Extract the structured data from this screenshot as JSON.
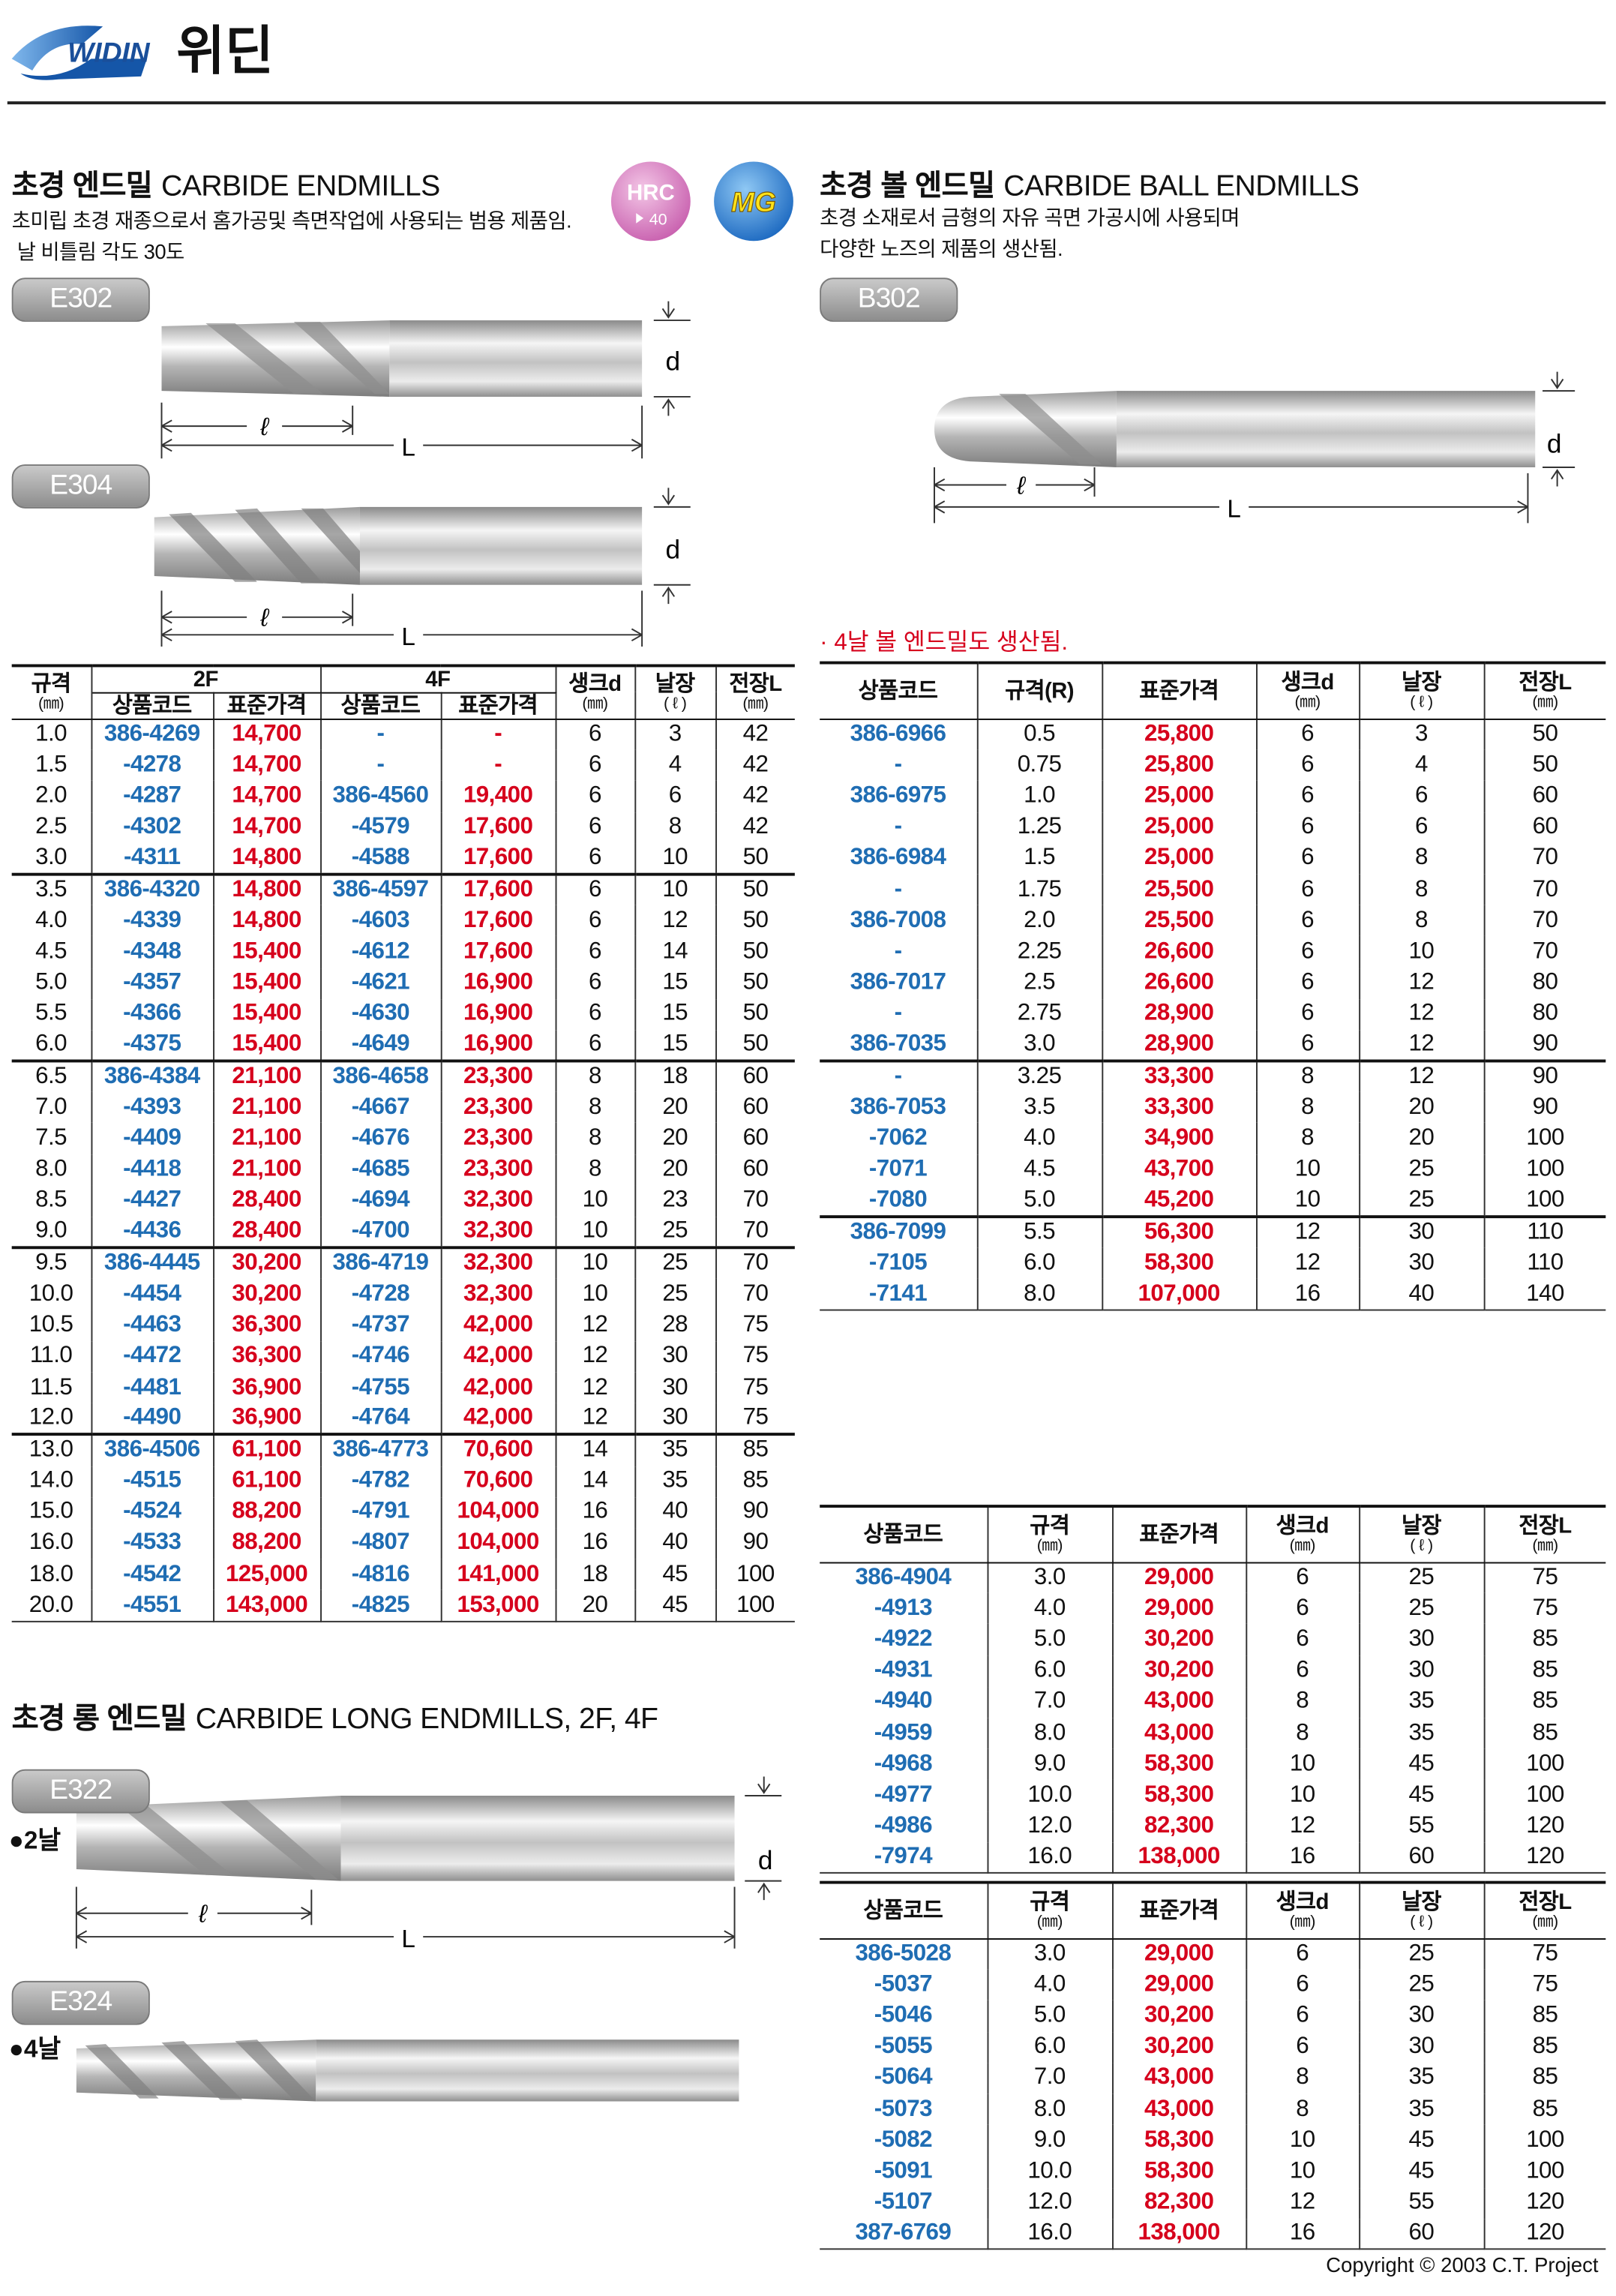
{
  "header": {
    "brand": "WIDIN",
    "title": "위딘"
  },
  "dims": {
    "d": "d",
    "l": "ℓ",
    "L": "L"
  },
  "endmills": {
    "title_ko": "초경 엔드밀",
    "title_en": "CARBIDE ENDMILLS",
    "description": [
      "초미립 초경 재종으로서 홈가공및 측면작업에 사용되는 범용 제품임.",
      " 날 비틀림 각도 30도"
    ],
    "badges": {
      "hrc": "HRC",
      "hrc_value": "40",
      "mg": "MG"
    },
    "models": [
      "E302",
      "E304"
    ],
    "table": {
      "header": {
        "size": "규격",
        "size_unit": "(㎜)",
        "group_2f": "2F",
        "group_4f": "4F",
        "code": "상품코드",
        "price": "표준가격",
        "shank": "생크d",
        "shank_unit": "(㎜)",
        "flute": "날장",
        "flute_unit": "( ℓ )",
        "length": "전장L",
        "length_unit": "(㎜)"
      },
      "rows": [
        [
          "1.0",
          "386-4269",
          "14,700",
          "-",
          "-",
          "6",
          "3",
          "42"
        ],
        [
          "1.5",
          "-4278",
          "14,700",
          "-",
          "-",
          "6",
          "4",
          "42"
        ],
        [
          "2.0",
          "-4287",
          "14,700",
          "386-4560",
          "19,400",
          "6",
          "6",
          "42"
        ],
        [
          "2.5",
          "-4302",
          "14,700",
          "-4579",
          "17,600",
          "6",
          "8",
          "42"
        ],
        [
          "3.0",
          "-4311",
          "14,800",
          "-4588",
          "17,600",
          "6",
          "10",
          "50"
        ],
        [
          "3.5",
          "386-4320",
          "14,800",
          "386-4597",
          "17,600",
          "6",
          "10",
          "50"
        ],
        [
          "4.0",
          "-4339",
          "14,800",
          "-4603",
          "17,600",
          "6",
          "12",
          "50"
        ],
        [
          "4.5",
          "-4348",
          "15,400",
          "-4612",
          "17,600",
          "6",
          "14",
          "50"
        ],
        [
          "5.0",
          "-4357",
          "15,400",
          "-4621",
          "16,900",
          "6",
          "15",
          "50"
        ],
        [
          "5.5",
          "-4366",
          "15,400",
          "-4630",
          "16,900",
          "6",
          "15",
          "50"
        ],
        [
          "6.0",
          "-4375",
          "15,400",
          "-4649",
          "16,900",
          "6",
          "15",
          "50"
        ],
        [
          "6.5",
          "386-4384",
          "21,100",
          "386-4658",
          "23,300",
          "8",
          "18",
          "60"
        ],
        [
          "7.0",
          "-4393",
          "21,100",
          "-4667",
          "23,300",
          "8",
          "20",
          "60"
        ],
        [
          "7.5",
          "-4409",
          "21,100",
          "-4676",
          "23,300",
          "8",
          "20",
          "60"
        ],
        [
          "8.0",
          "-4418",
          "21,100",
          "-4685",
          "23,300",
          "8",
          "20",
          "60"
        ],
        [
          "8.5",
          "-4427",
          "28,400",
          "-4694",
          "32,300",
          "10",
          "23",
          "70"
        ],
        [
          "9.0",
          "-4436",
          "28,400",
          "-4700",
          "32,300",
          "10",
          "25",
          "70"
        ],
        [
          "9.5",
          "386-4445",
          "30,200",
          "386-4719",
          "32,300",
          "10",
          "25",
          "70"
        ],
        [
          "10.0",
          "-4454",
          "30,200",
          "-4728",
          "32,300",
          "10",
          "25",
          "70"
        ],
        [
          "10.5",
          "-4463",
          "36,300",
          "-4737",
          "42,000",
          "12",
          "28",
          "75"
        ],
        [
          "11.0",
          "-4472",
          "36,300",
          "-4746",
          "42,000",
          "12",
          "30",
          "75"
        ],
        [
          "11.5",
          "-4481",
          "36,900",
          "-4755",
          "42,000",
          "12",
          "30",
          "75"
        ],
        [
          "12.0",
          "-4490",
          "36,900",
          "-4764",
          "42,000",
          "12",
          "30",
          "75"
        ],
        [
          "13.0",
          "386-4506",
          "61,100",
          "386-4773",
          "70,600",
          "14",
          "35",
          "85"
        ],
        [
          "14.0",
          "-4515",
          "61,100",
          "-4782",
          "70,600",
          "14",
          "35",
          "85"
        ],
        [
          "15.0",
          "-4524",
          "88,200",
          "-4791",
          "104,000",
          "16",
          "40",
          "90"
        ],
        [
          "16.0",
          "-4533",
          "88,200",
          "-4807",
          "104,000",
          "16",
          "40",
          "90"
        ],
        [
          "18.0",
          "-4542",
          "125,000",
          "-4816",
          "141,000",
          "18",
          "45",
          "100"
        ],
        [
          "20.0",
          "-4551",
          "143,000",
          "-4825",
          "153,000",
          "20",
          "45",
          "100"
        ]
      ]
    }
  },
  "ball_endmills": {
    "title_ko": "초경 볼 엔드밀",
    "title_en": "CARBIDE BALL ENDMILLS",
    "description": [
      "초경 소재로서 금형의 자유 곡면 가공시에 사용되며",
      "다양한 노즈의 제품의 생산됨."
    ],
    "model": "B302",
    "note": "· 4날 볼 엔드밀도 생산됨.",
    "table": {
      "header": {
        "code": "상품코드",
        "size": "규격(R)",
        "price": "표준가격",
        "shank": "생크d",
        "shank_unit": "(㎜)",
        "flute": "날장",
        "flute_unit": "( ℓ )",
        "length": "전장L",
        "length_unit": "(㎜)"
      },
      "rows": [
        [
          "386-6966",
          "0.5",
          "25,800",
          "6",
          "3",
          "50"
        ],
        [
          "-",
          "0.75",
          "25,800",
          "6",
          "4",
          "50"
        ],
        [
          "386-6975",
          "1.0",
          "25,000",
          "6",
          "6",
          "60"
        ],
        [
          "-",
          "1.25",
          "25,000",
          "6",
          "6",
          "60"
        ],
        [
          "386-6984",
          "1.5",
          "25,000",
          "6",
          "8",
          "70"
        ],
        [
          "-",
          "1.75",
          "25,500",
          "6",
          "8",
          "70"
        ],
        [
          "386-7008",
          "2.0",
          "25,500",
          "6",
          "8",
          "70"
        ],
        [
          "-",
          "2.25",
          "26,600",
          "6",
          "10",
          "70"
        ],
        [
          "386-7017",
          "2.5",
          "26,600",
          "6",
          "12",
          "80"
        ],
        [
          "-",
          "2.75",
          "28,900",
          "6",
          "12",
          "80"
        ],
        [
          "386-7035",
          "3.0",
          "28,900",
          "6",
          "12",
          "90"
        ],
        [
          "-",
          "3.25",
          "33,300",
          "8",
          "12",
          "90"
        ],
        [
          "386-7053",
          "3.5",
          "33,300",
          "8",
          "20",
          "90"
        ],
        [
          "-7062",
          "4.0",
          "34,900",
          "8",
          "20",
          "100"
        ],
        [
          "-7071",
          "4.5",
          "43,700",
          "10",
          "25",
          "100"
        ],
        [
          "-7080",
          "5.0",
          "45,200",
          "10",
          "25",
          "100"
        ],
        [
          "386-7099",
          "5.5",
          "56,300",
          "12",
          "30",
          "110"
        ],
        [
          "-7105",
          "6.0",
          "58,300",
          "12",
          "30",
          "110"
        ],
        [
          "-7141",
          "8.0",
          "107,000",
          "16",
          "40",
          "140"
        ]
      ]
    }
  },
  "long_endmills": {
    "title_ko": "초경 롱 엔드밀",
    "title_en": "CARBIDE LONG ENDMILLS, 2F, 4F",
    "models": [
      {
        "code": "E322",
        "flutes": "●2날"
      },
      {
        "code": "E324",
        "flutes": "●4날"
      }
    ],
    "header": {
      "code": "상품코드",
      "size": "규격",
      "size_unit": "(㎜)",
      "price": "표준가격",
      "shank": "생크d",
      "shank_unit": "(㎜)",
      "flute": "날장",
      "flute_unit": "( ℓ )",
      "length": "전장L",
      "length_unit": "(㎜)"
    },
    "tables": [
      [
        [
          "386-4904",
          "3.0",
          "29,000",
          "6",
          "25",
          "75"
        ],
        [
          "-4913",
          "4.0",
          "29,000",
          "6",
          "25",
          "75"
        ],
        [
          "-4922",
          "5.0",
          "30,200",
          "6",
          "30",
          "85"
        ],
        [
          "-4931",
          "6.0",
          "30,200",
          "6",
          "30",
          "85"
        ],
        [
          "-4940",
          "7.0",
          "43,000",
          "8",
          "35",
          "85"
        ],
        [
          "-4959",
          "8.0",
          "43,000",
          "8",
          "35",
          "85"
        ],
        [
          "-4968",
          "9.0",
          "58,300",
          "10",
          "45",
          "100"
        ],
        [
          "-4977",
          "10.0",
          "58,300",
          "10",
          "45",
          "100"
        ],
        [
          "-4986",
          "12.0",
          "82,300",
          "12",
          "55",
          "120"
        ],
        [
          "-7974",
          "16.0",
          "138,000",
          "16",
          "60",
          "120"
        ]
      ],
      [
        [
          "386-5028",
          "3.0",
          "29,000",
          "6",
          "25",
          "75"
        ],
        [
          "-5037",
          "4.0",
          "29,000",
          "6",
          "25",
          "75"
        ],
        [
          "-5046",
          "5.0",
          "30,200",
          "6",
          "30",
          "85"
        ],
        [
          "-5055",
          "6.0",
          "30,200",
          "6",
          "30",
          "85"
        ],
        [
          "-5064",
          "7.0",
          "43,000",
          "8",
          "35",
          "85"
        ],
        [
          "-5073",
          "8.0",
          "43,000",
          "8",
          "35",
          "85"
        ],
        [
          "-5082",
          "9.0",
          "58,300",
          "10",
          "45",
          "100"
        ],
        [
          "-5091",
          "10.0",
          "58,300",
          "10",
          "45",
          "100"
        ],
        [
          "-5107",
          "12.0",
          "82,300",
          "12",
          "55",
          "120"
        ],
        [
          "387-6769",
          "16.0",
          "138,000",
          "16",
          "60",
          "120"
        ]
      ]
    ]
  },
  "footer": {
    "copyright": "Copyright © 2003 C.T. Project"
  }
}
